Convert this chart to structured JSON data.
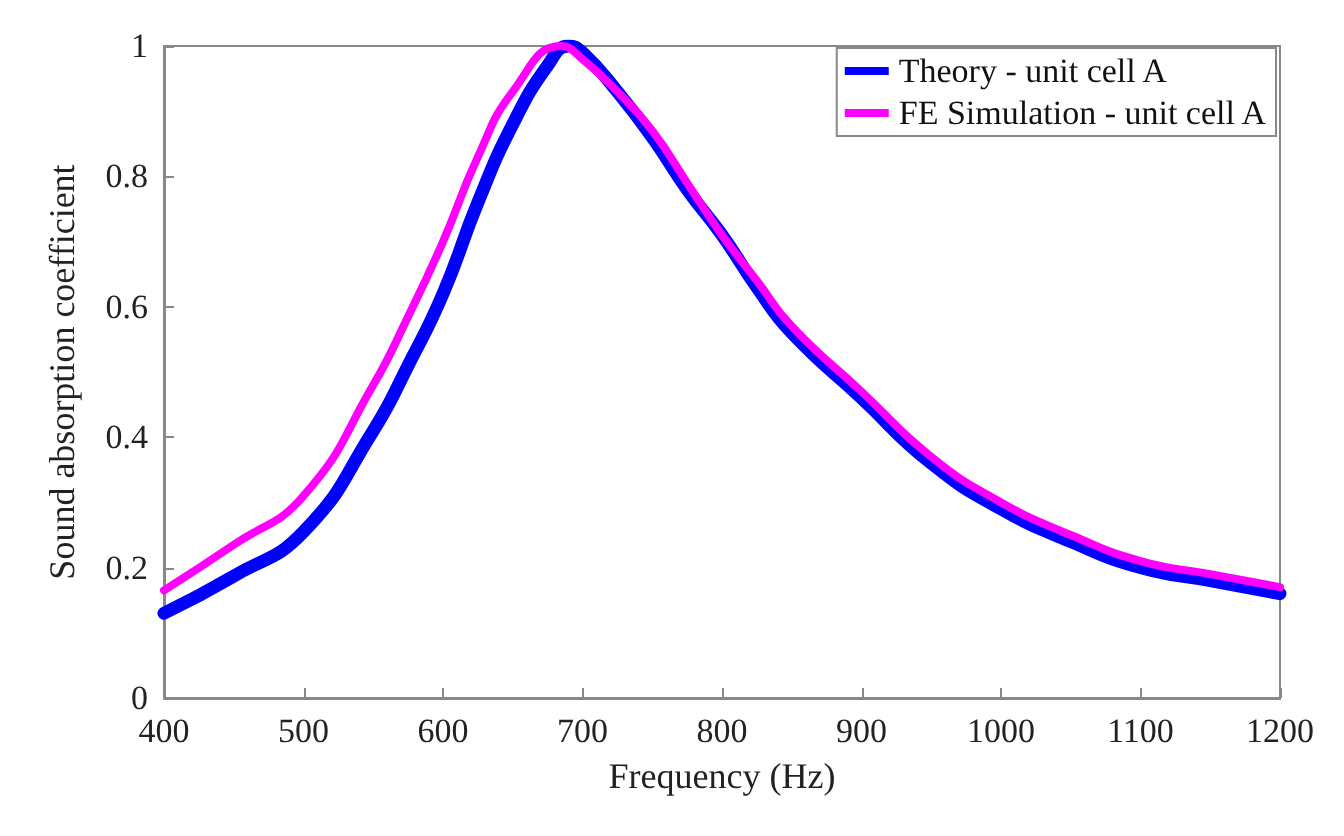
{
  "chart_data": {
    "type": "line",
    "xlabel": "Frequency (Hz)",
    "ylabel": "Sound absorption coefficient",
    "xlim": [
      400,
      1200
    ],
    "xticks": [
      400,
      500,
      600,
      700,
      800,
      900,
      1000,
      1100,
      1200
    ],
    "ylim": [
      0,
      1
    ],
    "yticks": [
      0,
      0.2,
      0.4,
      0.6,
      0.8,
      1
    ],
    "grid": false,
    "legend": "top right",
    "marker": "none",
    "line_style": "solid",
    "series": [
      {
        "name": "Theory - unit cell A",
        "color": "#0000ff",
        "x": [
          400,
          450,
          500,
          550,
          575,
          600,
          625,
          650,
          675,
          690,
          700,
          725,
          750,
          775,
          800,
          825,
          850,
          900,
          950,
          1000,
          1050,
          1100,
          1150,
          1200
        ],
        "values": [
          0.13,
          0.187,
          0.255,
          0.41,
          0.51,
          0.62,
          0.76,
          0.88,
          0.97,
          1.0,
          0.99,
          0.93,
          0.86,
          0.78,
          0.71,
          0.63,
          0.56,
          0.46,
          0.36,
          0.29,
          0.24,
          0.2,
          0.18,
          0.16
        ]
      },
      {
        "name": "FE Simulation - unit cell A",
        "color": "#ff00ff",
        "x": [
          400,
          450,
          500,
          550,
          575,
          600,
          625,
          650,
          685,
          700,
          725,
          750,
          775,
          800,
          825,
          850,
          900,
          950,
          1000,
          1050,
          1100,
          1150,
          1200
        ],
        "values": [
          0.165,
          0.235,
          0.31,
          0.48,
          0.585,
          0.7,
          0.83,
          0.93,
          1.0,
          0.98,
          0.93,
          0.87,
          0.79,
          0.71,
          0.64,
          0.57,
          0.47,
          0.37,
          0.3,
          0.25,
          0.21,
          0.19,
          0.17
        ]
      }
    ]
  }
}
